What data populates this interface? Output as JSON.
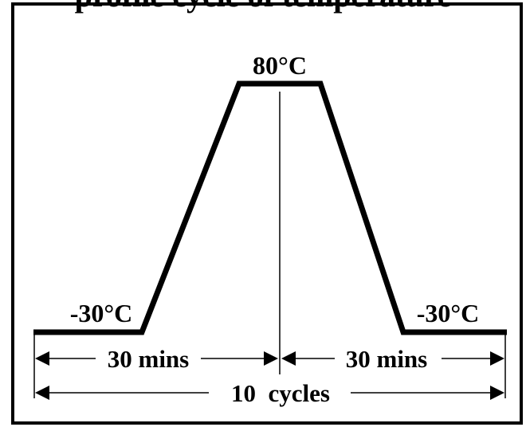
{
  "diagram": {
    "title_partial": "profile cycle of temperature",
    "peak_temperature": "80°C",
    "low_temperature_left": "-30°C",
    "low_temperature_right": "-30°C",
    "left_duration": "30 mins",
    "right_duration": "30 mins",
    "cycles": "10  cycles"
  }
}
